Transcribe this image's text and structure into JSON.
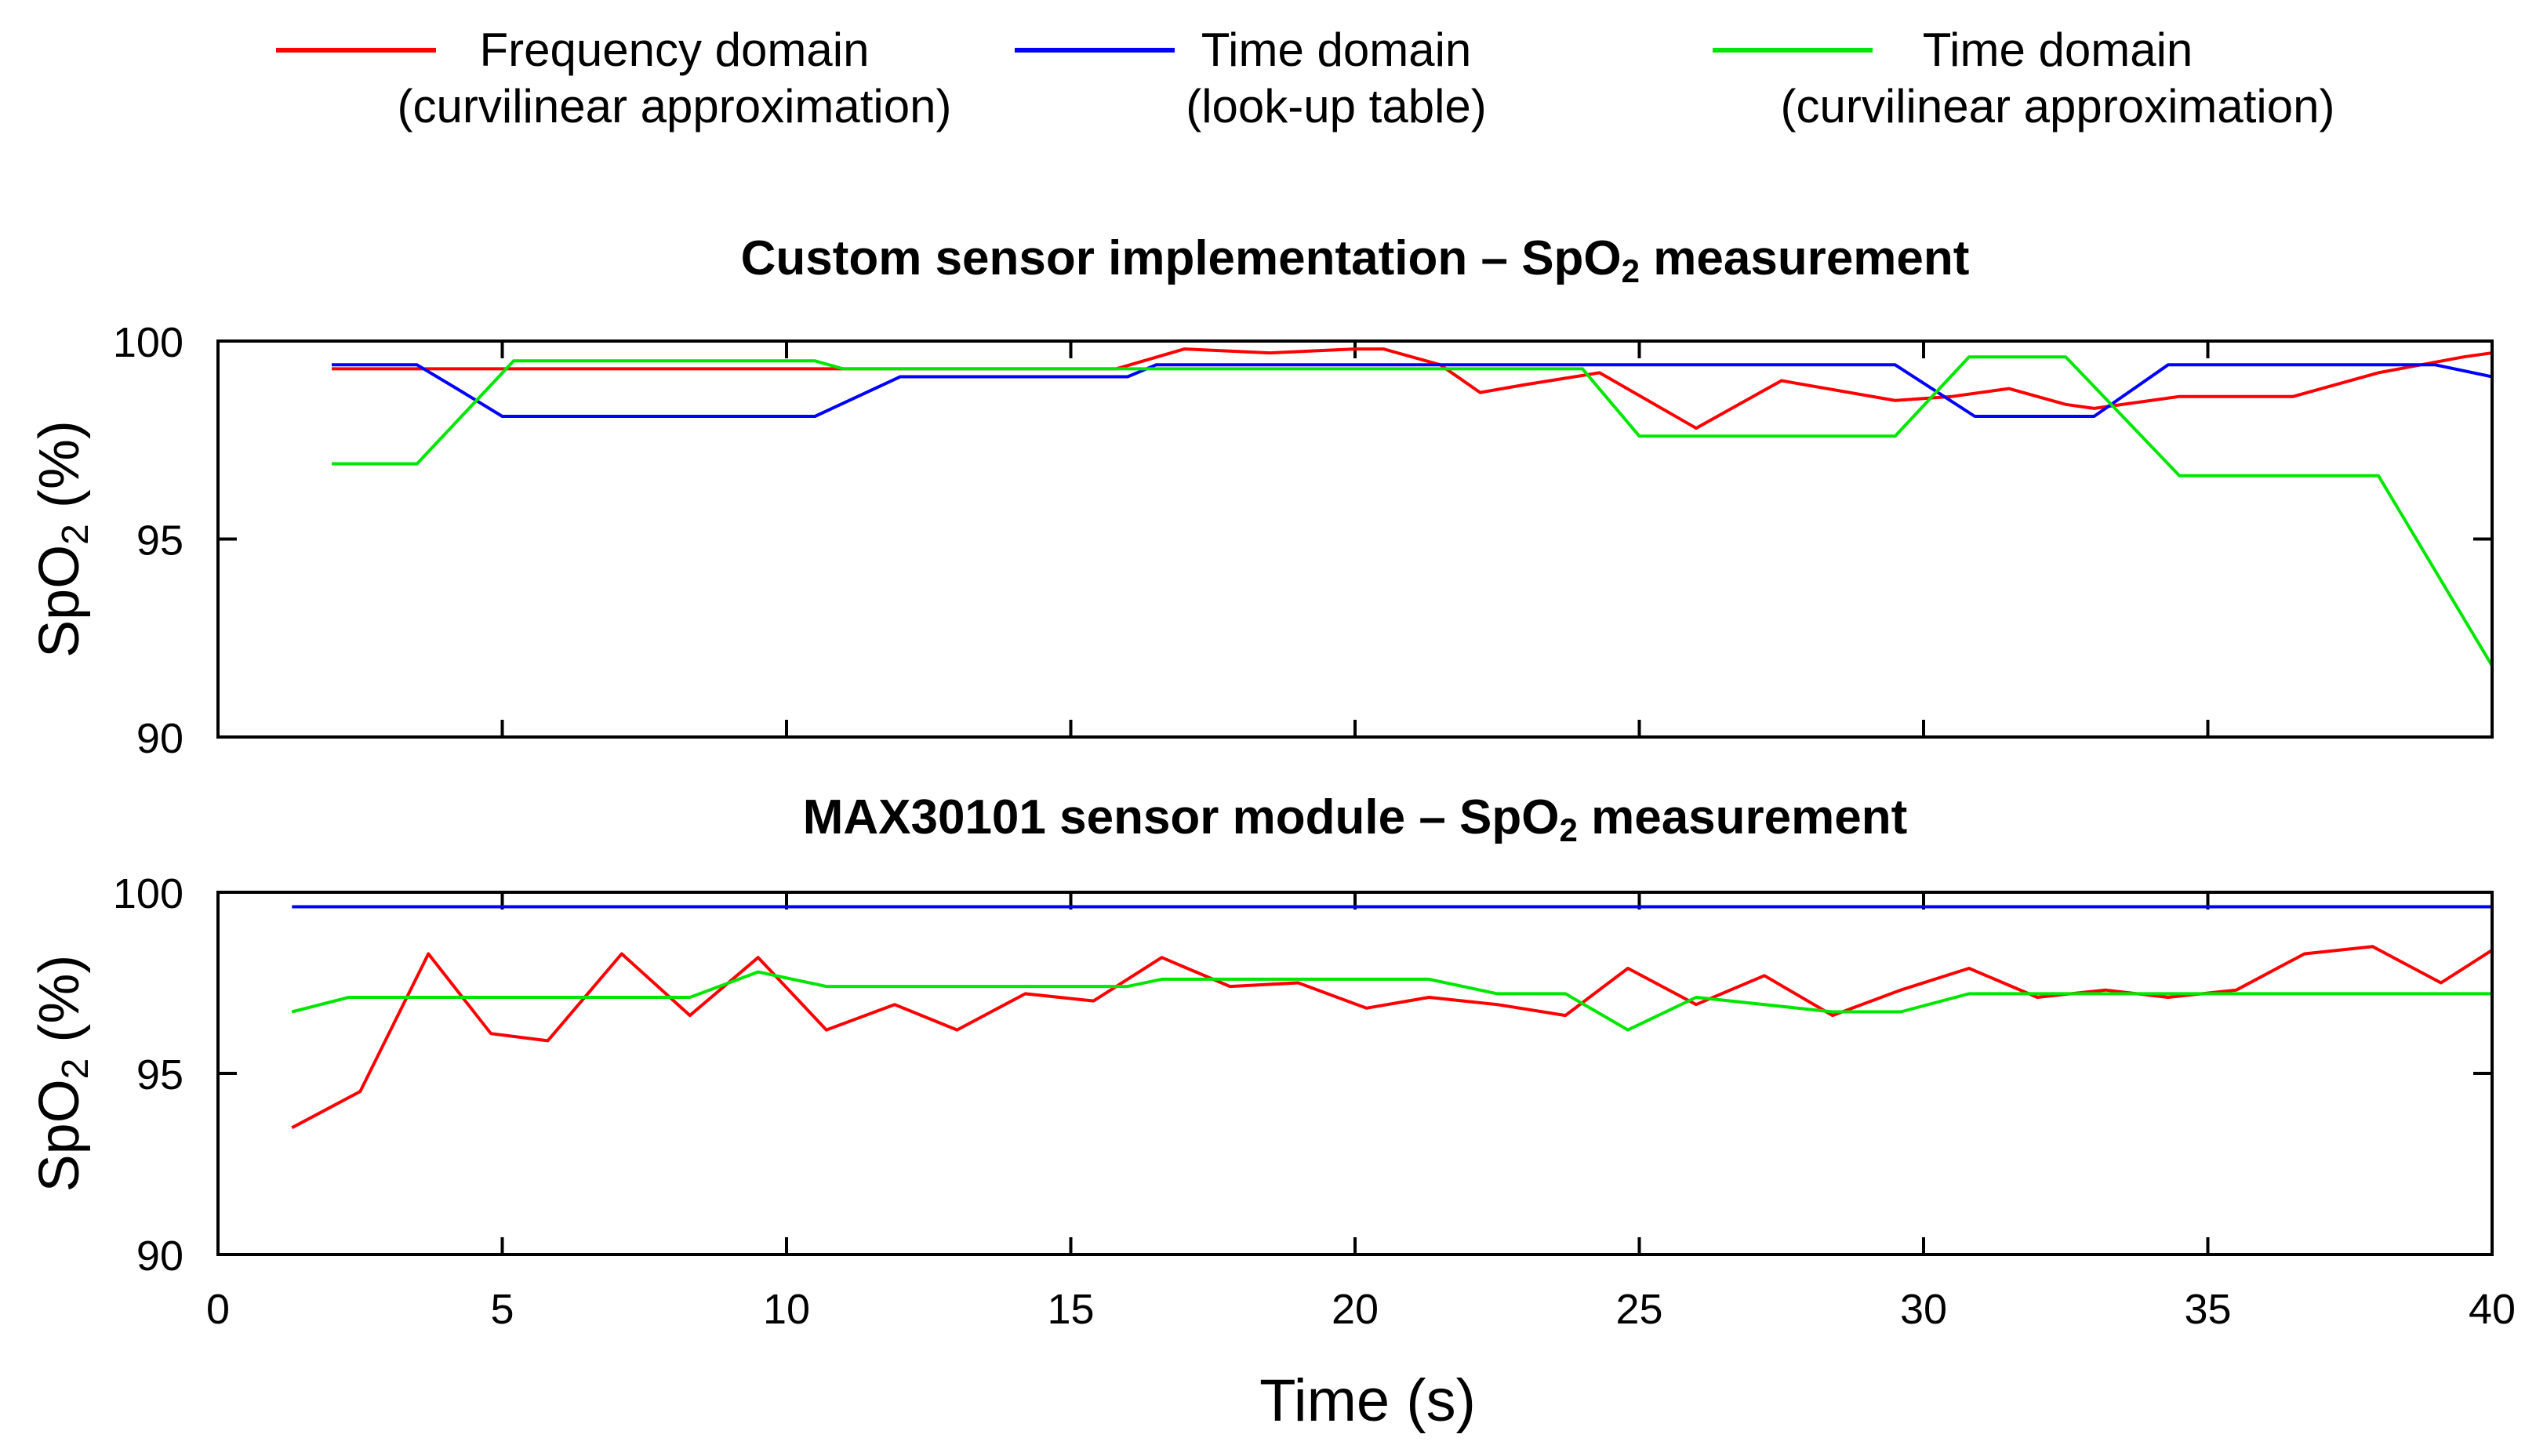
{
  "legend": [
    {
      "line1": "Frequency domain",
      "line2": "(curvilinear approximation)",
      "color": "#ff0000"
    },
    {
      "line1": "Time domain",
      "line2": "(look-up table)",
      "color": "#0000ff"
    },
    {
      "line1": "Time domain",
      "line2": "(curvilinear approximation)",
      "color": "#00e600"
    }
  ],
  "xlabel": "Time (s)",
  "chart_data": [
    {
      "type": "line",
      "title_pre": "Custom sensor implementation – SpO",
      "title_sub": "2",
      "title_post": " measurement",
      "ylabel_pre": "SpO",
      "ylabel_sub": "2",
      "ylabel_post": " (%)",
      "xlim": [
        0,
        40
      ],
      "ylim": [
        90,
        100
      ],
      "xticks": [
        0,
        5,
        10,
        15,
        20,
        25,
        30,
        35,
        40
      ],
      "yticks": [
        90,
        95,
        100
      ],
      "series": [
        {
          "name": "Frequency domain (curvilinear approximation)",
          "color": "#ff0000",
          "x": [
            2,
            11.5,
            15.8,
            17,
            18.5,
            20,
            20.5,
            21.5,
            22.2,
            23,
            24.3,
            26,
            27.5,
            29.5,
            30.5,
            31.5,
            32.5,
            33,
            34.5,
            36.5,
            38,
            39.5,
            40
          ],
          "y": [
            99.3,
            99.3,
            99.3,
            99.8,
            99.7,
            99.8,
            99.8,
            99.4,
            98.7,
            98.9,
            99.2,
            97.8,
            99,
            98.5,
            98.6,
            98.8,
            98.4,
            98.3,
            98.6,
            98.6,
            99.2,
            99.6,
            99.7
          ]
        },
        {
          "name": "Time domain (look-up table)",
          "color": "#0000ff",
          "x": [
            2,
            3.5,
            4.2,
            5,
            10.5,
            12,
            16,
            16.5,
            21.5,
            24,
            29.5,
            30.9,
            33,
            34.3,
            39,
            40
          ],
          "y": [
            99.4,
            99.4,
            98.8,
            98.1,
            98.1,
            99.1,
            99.1,
            99.4,
            99.4,
            99.4,
            99.4,
            98.1,
            98.1,
            99.4,
            99.4,
            99.1
          ]
        },
        {
          "name": "Time domain (curvilinear approximation)",
          "color": "#00e600",
          "x": [
            2,
            3.5,
            5.2,
            10.5,
            11,
            24,
            25,
            29.5,
            30.8,
            32.5,
            34.5,
            38,
            40
          ],
          "y": [
            96.9,
            96.9,
            99.5,
            99.5,
            99.3,
            99.3,
            97.6,
            97.6,
            99.6,
            99.6,
            96.6,
            96.6,
            91.8
          ]
        }
      ]
    },
    {
      "type": "line",
      "title_pre": "MAX30101 sensor module – SpO",
      "title_sub": "2",
      "title_post": " measurement",
      "ylabel_pre": "SpO",
      "ylabel_sub": "2",
      "ylabel_post": " (%)",
      "xlim": [
        0,
        40
      ],
      "ylim": [
        90,
        100
      ],
      "xticks": [
        0,
        5,
        10,
        15,
        20,
        25,
        30,
        35,
        40
      ],
      "yticks": [
        90,
        95,
        100
      ],
      "series": [
        {
          "name": "Frequency domain (curvilinear approximation)",
          "color": "#ff0000",
          "x": [
            1.3,
            2.5,
            3.7,
            4.8,
            5.8,
            7.1,
            8.3,
            9.5,
            10.7,
            11.9,
            13,
            14.2,
            15.4,
            16.6,
            17.8,
            19,
            20.2,
            21.3,
            22.5,
            23.7,
            24.8,
            26,
            27.2,
            28.4,
            29.6,
            30.8,
            32,
            33.2,
            34.3,
            35.5,
            36.7,
            37.9,
            39.1,
            40
          ],
          "y": [
            93.5,
            94.5,
            98.3,
            96.1,
            95.9,
            98.3,
            96.6,
            98.2,
            96.2,
            96.9,
            96.2,
            97.2,
            97,
            98.2,
            97.4,
            97.5,
            96.8,
            97.1,
            96.9,
            96.6,
            97.9,
            96.9,
            97.7,
            96.6,
            97.3,
            97.9,
            97.1,
            97.3,
            97.1,
            97.3,
            98.3,
            98.5,
            97.5,
            98.4
          ]
        },
        {
          "name": "Time domain (look-up table)",
          "color": "#0000ff",
          "x": [
            1.3,
            40
          ],
          "y": [
            99.6,
            99.6
          ]
        },
        {
          "name": "Time domain (curvilinear approximation)",
          "color": "#00e600",
          "x": [
            1.3,
            2.3,
            8.3,
            9.5,
            10.7,
            16,
            16.6,
            21.3,
            22.5,
            23.7,
            24.8,
            26,
            28.4,
            29.6,
            30.8,
            40
          ],
          "y": [
            96.7,
            97.1,
            97.1,
            97.8,
            97.4,
            97.4,
            97.6,
            97.6,
            97.2,
            97.2,
            96.2,
            97.1,
            96.7,
            96.7,
            97.2,
            97.2
          ]
        }
      ]
    }
  ]
}
